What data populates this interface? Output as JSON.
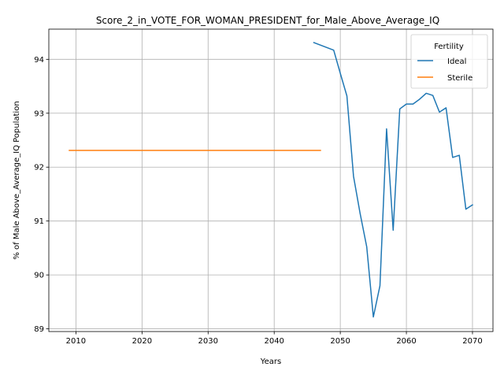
{
  "chart_data": {
    "type": "line",
    "title": "Score_2_in_VOTE_FOR_WOMAN_PRESIDENT_for_Male_Above_Average_IQ",
    "xlabel": "Years",
    "ylabel": "% of Male Above_Average_IQ Population",
    "xlim": [
      2005.9,
      2073.1
    ],
    "ylim": [
      88.95,
      94.56
    ],
    "xticks": [
      2010,
      2020,
      2030,
      2040,
      2050,
      2060,
      2070
    ],
    "yticks": [
      89,
      90,
      91,
      92,
      93,
      94
    ],
    "grid": true,
    "legend": {
      "title": "Fertility",
      "placement": "top-right"
    },
    "series": [
      {
        "name": "Ideal",
        "color": "#1f77b4",
        "x": [
          2046,
          2049,
          2050,
          2051,
          2052,
          2053,
          2054,
          2055,
          2056,
          2057,
          2058,
          2059,
          2060,
          2061,
          2062,
          2063,
          2064,
          2065,
          2066,
          2067,
          2068,
          2069,
          2070
        ],
        "y": [
          94.31,
          94.17,
          93.74,
          93.32,
          91.83,
          91.14,
          90.52,
          89.22,
          89.8,
          92.71,
          90.83,
          93.08,
          93.17,
          93.17,
          93.26,
          93.37,
          93.33,
          93.02,
          93.1,
          92.18,
          92.22,
          91.22,
          91.3
        ]
      },
      {
        "name": "Sterile",
        "color": "#ff7f0e",
        "x": [
          2009,
          2047
        ],
        "y": [
          92.31,
          92.31
        ]
      }
    ]
  }
}
